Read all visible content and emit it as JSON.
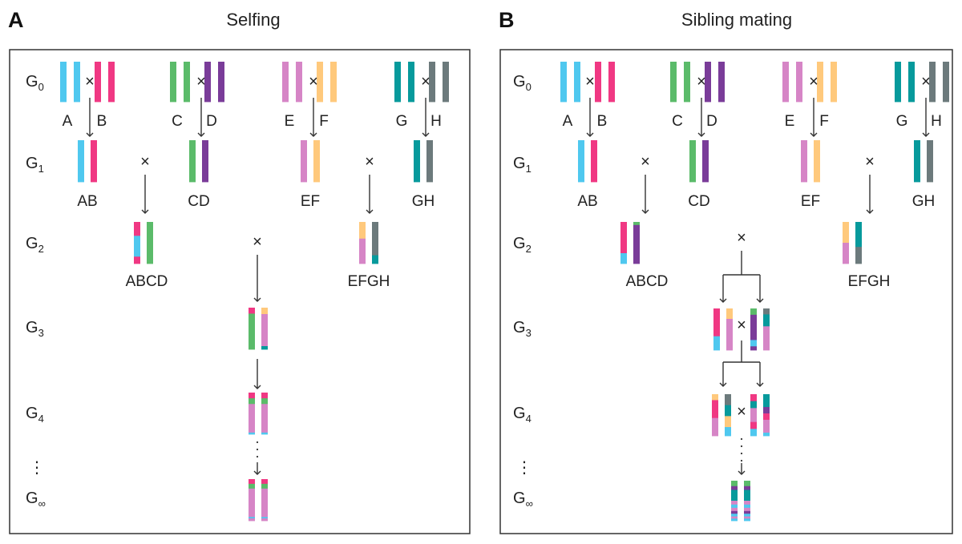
{
  "colors": {
    "A": "#4fc8ef",
    "B": "#f03883",
    "C": "#5bbb6a",
    "D": "#7a3c99",
    "E": "#d685c6",
    "F": "#ffc97c",
    "G": "#079a9c",
    "H": "#6c7a7c",
    "line": "#333333"
  },
  "panels": [
    {
      "letter": "A",
      "title": "Selfing"
    },
    {
      "letter": "B",
      "title": "Sibling mating"
    }
  ],
  "generations": [
    {
      "base": "G",
      "sub": "0"
    },
    {
      "base": "G",
      "sub": "1"
    },
    {
      "base": "G",
      "sub": "2"
    },
    {
      "base": "G",
      "sub": "3"
    },
    {
      "base": "G",
      "sub": "4"
    },
    {
      "base": "G",
      "sub": "∞"
    }
  ],
  "ellipsis": "⋮",
  "cross_symbol": "×",
  "founders": [
    "A",
    "B",
    "C",
    "D",
    "E",
    "F",
    "G",
    "H"
  ],
  "g1_labels": [
    "AB",
    "CD",
    "EF",
    "GH"
  ],
  "g2_labels": [
    "ABCD",
    "EFGH"
  ]
}
